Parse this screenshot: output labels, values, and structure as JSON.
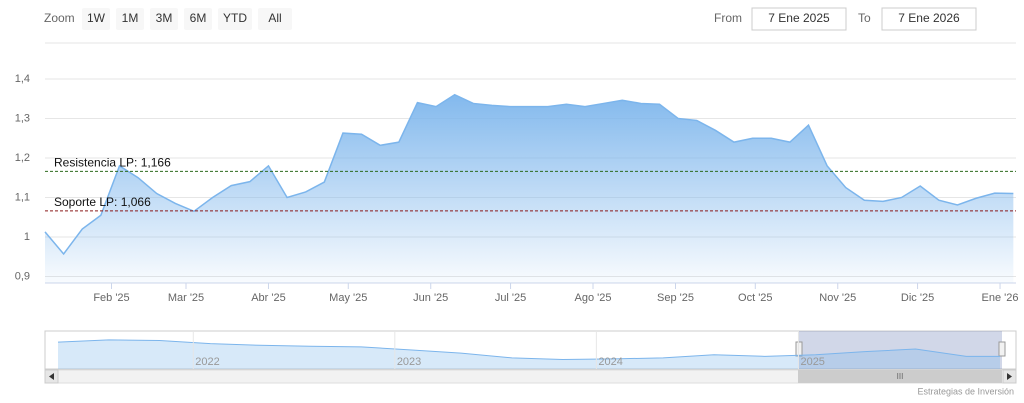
{
  "ui": {
    "zoom_label": "Zoom",
    "zoom_buttons": [
      "1W",
      "1M",
      "3M",
      "6M",
      "YTD",
      "All"
    ],
    "from_label": "From",
    "from_value": "7 Ene 2025",
    "to_label": "To",
    "to_value": "7 Ene 2026",
    "credits": "Estrategias de Inversión"
  },
  "chart_data": {
    "type": "area",
    "series": [
      {
        "color": "#7cb5ec",
        "x": [
          "2025-01-07",
          "2025-01-14",
          "2025-01-21",
          "2025-01-28",
          "2025-02-04",
          "2025-02-11",
          "2025-02-18",
          "2025-02-25",
          "2025-03-04",
          "2025-03-11",
          "2025-03-18",
          "2025-03-25",
          "2025-04-01",
          "2025-04-08",
          "2025-04-15",
          "2025-04-22",
          "2025-04-29",
          "2025-05-06",
          "2025-05-13",
          "2025-05-20",
          "2025-05-27",
          "2025-06-03",
          "2025-06-10",
          "2025-06-17",
          "2025-06-24",
          "2025-07-01",
          "2025-07-08",
          "2025-07-15",
          "2025-07-22",
          "2025-07-29",
          "2025-08-05",
          "2025-08-12",
          "2025-08-19",
          "2025-08-26",
          "2025-09-02",
          "2025-09-09",
          "2025-09-16",
          "2025-09-23",
          "2025-09-30",
          "2025-10-07",
          "2025-10-14",
          "2025-10-21",
          "2025-10-28",
          "2025-11-04",
          "2025-11-11",
          "2025-11-18",
          "2025-11-25",
          "2025-12-02",
          "2025-12-09",
          "2025-12-16",
          "2025-12-23",
          "2025-12-30",
          "2026-01-06"
        ],
        "values": [
          1.013,
          0.957,
          1.02,
          1.055,
          1.18,
          1.15,
          1.11,
          1.085,
          1.065,
          1.1,
          1.13,
          1.14,
          1.18,
          1.1,
          1.114,
          1.139,
          1.263,
          1.26,
          1.232,
          1.24,
          1.34,
          1.33,
          1.36,
          1.338,
          1.333,
          1.33,
          1.33,
          1.33,
          1.336,
          1.33,
          1.338,
          1.346,
          1.338,
          1.336,
          1.3,
          1.295,
          1.27,
          1.24,
          1.25,
          1.25,
          1.24,
          1.283,
          1.18,
          1.125,
          1.093,
          1.09,
          1.1,
          1.129,
          1.093,
          1.081,
          1.098,
          1.111,
          1.11
        ]
      }
    ],
    "xlim": [
      "2025-01-07",
      "2026-01-07"
    ],
    "xticks": [
      {
        "value": "2025-02-01",
        "label": "Feb '25"
      },
      {
        "value": "2025-03-01",
        "label": "Mar '25"
      },
      {
        "value": "2025-04-01",
        "label": "Abr '25"
      },
      {
        "value": "2025-05-01",
        "label": "May '25"
      },
      {
        "value": "2025-06-01",
        "label": "Jun '25"
      },
      {
        "value": "2025-07-01",
        "label": "Jul '25"
      },
      {
        "value": "2025-08-01",
        "label": "Ago '25"
      },
      {
        "value": "2025-09-01",
        "label": "Sep '25"
      },
      {
        "value": "2025-10-01",
        "label": "Oct '25"
      },
      {
        "value": "2025-11-01",
        "label": "Nov '25"
      },
      {
        "value": "2025-12-01",
        "label": "Dic '25"
      },
      {
        "value": "2026-01-01",
        "label": "Ene '26"
      }
    ],
    "ylim": [
      0.8835,
      1.491
    ],
    "yticks": [
      {
        "value": 0.9,
        "label": "0,9"
      },
      1,
      {
        "value": 1.1,
        "label": "1,1"
      },
      {
        "value": 1.2,
        "label": "1,2"
      },
      {
        "value": 1.3,
        "label": "1,3"
      },
      {
        "value": 1.4,
        "label": "1,4"
      }
    ],
    "grid": true,
    "plot_lines": [
      {
        "label": "Resistencia LP: 1,166",
        "value": 1.166,
        "color": "#2e6b1f"
      },
      {
        "label": "Soporte LP: 1,066",
        "value": 1.066,
        "color": "#8b1a1a"
      }
    ],
    "navigator": {
      "x": [
        "2021-05",
        "2021-08",
        "2021-11",
        "2022-02",
        "2022-05",
        "2022-08",
        "2022-11",
        "2023-02",
        "2023-05",
        "2023-08",
        "2023-11",
        "2024-02",
        "2024-05",
        "2024-08",
        "2024-11",
        "2025-02",
        "2025-05",
        "2025-08",
        "2025-11",
        "2026-01"
      ],
      "values": [
        1.55,
        1.62,
        1.6,
        1.5,
        1.45,
        1.42,
        1.4,
        1.3,
        1.2,
        1.05,
        1.0,
        1.02,
        1.05,
        1.15,
        1.1,
        1.15,
        1.25,
        1.33,
        1.1,
        1.1
      ],
      "xlim": [
        "2021-05",
        "2026-01"
      ],
      "ylim": [
        0.7,
        1.9
      ],
      "xticks": [
        {
          "value": "2022-01-01",
          "label": "2022"
        },
        {
          "value": "2023-01-01",
          "label": "2023"
        },
        {
          "value": "2024-01-01",
          "label": "2024"
        },
        {
          "value": "2025-01-01",
          "label": "2025"
        }
      ]
    }
  }
}
